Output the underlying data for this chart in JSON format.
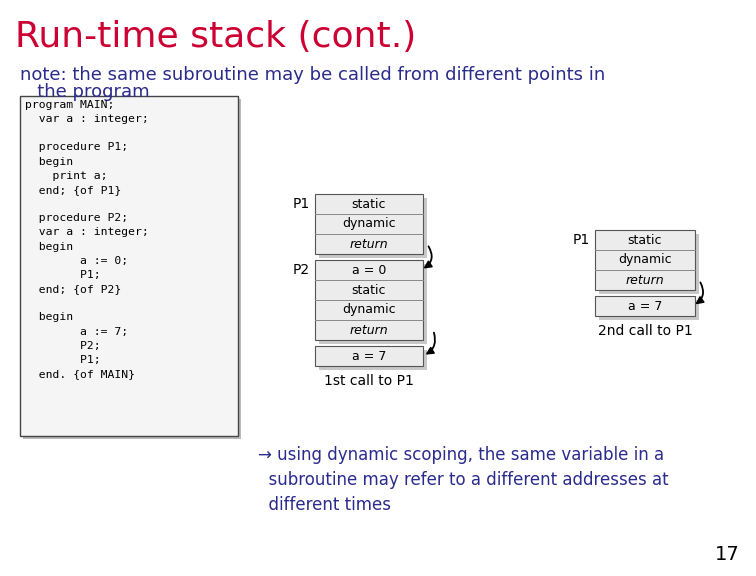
{
  "title": "Run-time stack (cont.)",
  "title_color": "#cc0033",
  "subtitle_line1": "note: the same subroutine may be called from different points in",
  "subtitle_line2": "   the program",
  "subtitle_color": "#2b2b8c",
  "bg_color": "#ffffff",
  "code_lines": [
    "program MAIN;",
    "  var a : integer;",
    "",
    "  procedure P1;",
    "  begin",
    "    print a;",
    "  end; {of P1}",
    "",
    "  procedure P2;",
    "  var a : integer;",
    "  begin",
    "        a := 0;",
    "        P1;",
    "  end; {of P2}",
    "",
    "  begin",
    "        a := 7;",
    "        P2;",
    "        P1;",
    "  end. {of MAIN}"
  ],
  "note_arrow": "→",
  "note_line1": " using dynamic scoping, the same variable in a",
  "note_line2": "  subroutine may refer to a different addresses at",
  "note_line3": "  different times",
  "note_color": "#2b2b8c",
  "page_num": "17",
  "stack1_label1": "P1",
  "stack1_label2": "P2",
  "stack1_rows_p1": [
    "static",
    "dynamic",
    "return"
  ],
  "stack1_rows_p2": [
    "a = 0",
    "static",
    "dynamic",
    "return"
  ],
  "stack1_rows_main": [
    "a = 7"
  ],
  "stack1_caption": "1st call to P1",
  "stack2_label1": "P1",
  "stack2_rows_p1": [
    "static",
    "dynamic",
    "return"
  ],
  "stack2_rows_main": [
    "a = 7"
  ],
  "stack2_caption": "2nd call to P1"
}
